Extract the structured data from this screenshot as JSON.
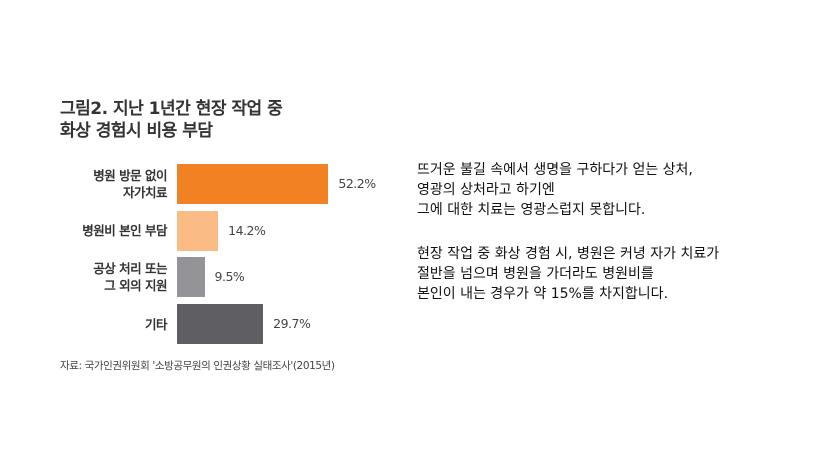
{
  "chart_data": {
    "type": "bar",
    "orientation": "horizontal",
    "title_lines": [
      "그림2. 지난 1년간 현장 작업 중",
      "화상 경험시 비용 부담"
    ],
    "categories": [
      [
        "병원 방문 없이",
        "자가치료"
      ],
      [
        "병원비 본인 부담"
      ],
      [
        "공상 처리 또는",
        "그 외의 지원"
      ],
      [
        "기타"
      ]
    ],
    "values": [
      52.2,
      14.2,
      9.5,
      29.7
    ],
    "value_labels": [
      "52.2%",
      "14.2%",
      "9.5%",
      "29.7%"
    ],
    "colors": [
      "#f28123",
      "#fbbb85",
      "#949498",
      "#5f5e62"
    ],
    "xlim": [
      0,
      100
    ],
    "grid": false,
    "source": "자료: 국가인권위원회 '소방공무원의 인권상황 실태조사'(2015년)"
  },
  "text": {
    "paragraph1": [
      "뜨거운 불길 속에서 생명을 구하다가 얻는 상처,",
      "영광의 상처라고 하기엔",
      "그에 대한 치료는 영광스럽지 못합니다."
    ],
    "paragraph2": [
      "현장 작업 중 화상 경험 시, 병원은 커녕 자가 치료가",
      "절반을 넘으며 병원을 가더라도 병원비를",
      "본인이 내는 경우가 약 15%를 차지합니다."
    ]
  }
}
